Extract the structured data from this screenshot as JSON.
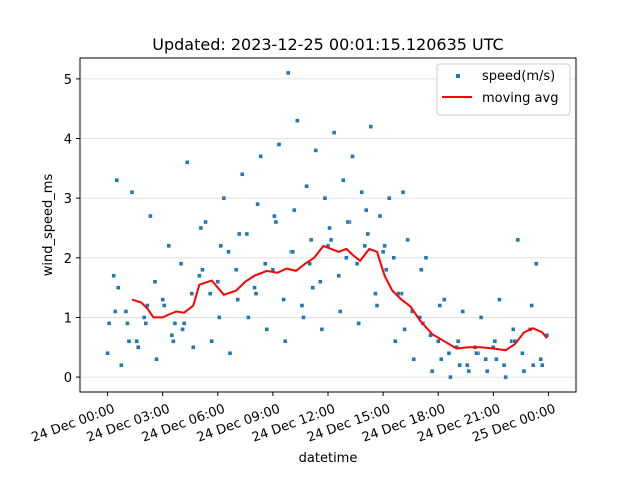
{
  "chart_data": {
    "type": "scatter",
    "title": "Updated: 2023-12-25 00:01:15.120635 UTC",
    "xlabel": "datetime",
    "ylabel": "wind_speed_ms",
    "xlim": [
      "2023-12-23T22:30",
      "2023-12-25T01:30"
    ],
    "ylim": [
      -0.25,
      5.35
    ],
    "yticks": [
      0,
      1,
      2,
      3,
      4,
      5
    ],
    "xticks": [
      {
        "value": "2023-12-24T00:00",
        "label": "24 Dec 00:00"
      },
      {
        "value": "2023-12-24T03:00",
        "label": "24 Dec 03:00"
      },
      {
        "value": "2023-12-24T06:00",
        "label": "24 Dec 06:00"
      },
      {
        "value": "2023-12-24T09:00",
        "label": "24 Dec 09:00"
      },
      {
        "value": "2023-12-24T12:00",
        "label": "24 Dec 12:00"
      },
      {
        "value": "2023-12-24T15:00",
        "label": "24 Dec 15:00"
      },
      {
        "value": "2023-12-24T18:00",
        "label": "24 Dec 18:00"
      },
      {
        "value": "2023-12-24T21:00",
        "label": "24 Dec 21:00"
      },
      {
        "value": "2023-12-25T00:00",
        "label": "25 Dec 00:00"
      }
    ],
    "grid": "y",
    "legend_position": "top-right",
    "series": [
      {
        "name": "speed(m/s)",
        "kind": "scatter",
        "color": "#1f77b4",
        "x": [
          "2023-12-24T00:00",
          "2023-12-24T00:20",
          "2023-12-24T00:30",
          "2023-12-24T00:45",
          "2023-12-24T01:00",
          "2023-12-24T01:20",
          "2023-12-24T01:40",
          "2023-12-24T02:00",
          "2023-12-24T02:20",
          "2023-12-24T02:40",
          "2023-12-24T03:00",
          "2023-12-24T03:20",
          "2023-12-24T03:40",
          "2023-12-24T04:00",
          "2023-12-24T04:20",
          "2023-12-24T04:40",
          "2023-12-24T05:00",
          "2023-12-24T05:20",
          "2023-12-24T05:40",
          "2023-12-24T06:00",
          "2023-12-24T06:20",
          "2023-12-24T06:40",
          "2023-12-24T07:00",
          "2023-12-24T07:20",
          "2023-12-24T07:40",
          "2023-12-24T08:00",
          "2023-12-24T08:20",
          "2023-12-24T08:40",
          "2023-12-24T09:00",
          "2023-12-24T09:20",
          "2023-12-24T09:40",
          "2023-12-24T10:00",
          "2023-12-24T10:20",
          "2023-12-24T10:40",
          "2023-12-24T11:00",
          "2023-12-24T11:20",
          "2023-12-24T11:40",
          "2023-12-24T12:00",
          "2023-12-24T12:20",
          "2023-12-24T12:40",
          "2023-12-24T13:00",
          "2023-12-24T13:20",
          "2023-12-24T13:40",
          "2023-12-24T14:00",
          "2023-12-24T14:20",
          "2023-12-24T14:40",
          "2023-12-24T15:00",
          "2023-12-24T15:20",
          "2023-12-24T15:40",
          "2023-12-24T16:00",
          "2023-12-24T16:20",
          "2023-12-24T16:40",
          "2023-12-24T17:00",
          "2023-12-24T17:20",
          "2023-12-24T17:40",
          "2023-12-24T18:00",
          "2023-12-24T18:20",
          "2023-12-24T18:40",
          "2023-12-24T19:00",
          "2023-12-24T19:20",
          "2023-12-24T19:40",
          "2023-12-24T20:00",
          "2023-12-24T20:20",
          "2023-12-24T20:40",
          "2023-12-24T21:00",
          "2023-12-24T21:20",
          "2023-12-24T21:40",
          "2023-12-24T22:00",
          "2023-12-24T22:20",
          "2023-12-24T22:40",
          "2023-12-24T23:00",
          "2023-12-24T23:20",
          "2023-12-24T23:40",
          "2023-12-24T23:55",
          "2023-12-24T01:10",
          "2023-12-24T00:25",
          "2023-12-24T02:10",
          "2023-12-24T03:30",
          "2023-12-24T04:10",
          "2023-12-24T05:10",
          "2023-12-24T06:10",
          "2023-12-24T07:10",
          "2023-12-24T08:10",
          "2023-12-24T09:10",
          "2023-12-24T09:50",
          "2023-12-24T10:10",
          "2023-12-24T10:50",
          "2023-12-24T11:10",
          "2023-12-24T11:50",
          "2023-12-24T12:10",
          "2023-12-24T12:50",
          "2023-12-24T13:10",
          "2023-12-24T13:50",
          "2023-12-24T14:10",
          "2023-12-24T14:50",
          "2023-12-24T15:10",
          "2023-12-24T15:50",
          "2023-12-24T16:10",
          "2023-12-24T17:10",
          "2023-12-24T18:10",
          "2023-12-24T19:10",
          "2023-12-24T20:10",
          "2023-12-24T21:10",
          "2023-12-24T22:10",
          "2023-12-24T23:10",
          "2023-12-24T00:05",
          "2023-12-24T00:35",
          "2023-12-24T01:05",
          "2023-12-24T01:35",
          "2023-12-24T02:05",
          "2023-12-24T02:35",
          "2023-12-24T03:05",
          "2023-12-24T03:35",
          "2023-12-24T04:05",
          "2023-12-24T04:35",
          "2023-12-24T05:05",
          "2023-12-24T05:35",
          "2023-12-24T06:05",
          "2023-12-24T06:35",
          "2023-12-24T07:05",
          "2023-12-24T07:35",
          "2023-12-24T08:05",
          "2023-12-24T08:35",
          "2023-12-24T09:05",
          "2023-12-24T09:35",
          "2023-12-24T10:05",
          "2023-12-24T10:35",
          "2023-12-24T11:05",
          "2023-12-24T11:35",
          "2023-12-24T12:05",
          "2023-12-24T12:35",
          "2023-12-24T13:05",
          "2023-12-24T13:35",
          "2023-12-24T14:05",
          "2023-12-24T14:35",
          "2023-12-24T15:05",
          "2023-12-24T15:35",
          "2023-12-24T16:05",
          "2023-12-24T16:35",
          "2023-12-24T17:05",
          "2023-12-24T17:35",
          "2023-12-24T18:05",
          "2023-12-24T18:35",
          "2023-12-24T19:05",
          "2023-12-24T19:35",
          "2023-12-24T20:05",
          "2023-12-24T20:35",
          "2023-12-24T21:05",
          "2023-12-24T21:35",
          "2023-12-24T22:05",
          "2023-12-24T22:35",
          "2023-12-24T23:05",
          "2023-12-24T23:35"
        ],
        "y": [
          0.4,
          1.7,
          3.3,
          0.2,
          1.1,
          3.1,
          0.5,
          1.0,
          2.7,
          0.3,
          1.3,
          2.2,
          0.9,
          1.9,
          3.6,
          0.5,
          1.7,
          2.6,
          0.6,
          1.6,
          3.0,
          0.4,
          1.8,
          3.4,
          1.0,
          1.5,
          3.7,
          0.8,
          1.8,
          3.9,
          0.6,
          2.1,
          4.3,
          1.0,
          1.9,
          3.8,
          0.8,
          2.2,
          4.1,
          1.1,
          2.0,
          3.7,
          0.9,
          2.2,
          4.2,
          1.2,
          2.1,
          3.0,
          0.6,
          1.4,
          2.3,
          0.3,
          1.0,
          2.0,
          0.1,
          0.6,
          1.3,
          0.0,
          0.5,
          1.1,
          0.1,
          0.5,
          1.0,
          0.1,
          0.5,
          1.3,
          0.0,
          0.6,
          2.3,
          0.1,
          0.8,
          1.9,
          0.2,
          0.7,
          0.6,
          1.1,
          1.2,
          0.7,
          0.9,
          1.8,
          2.2,
          2.4,
          2.9,
          2.6,
          5.1,
          2.8,
          3.2,
          1.5,
          3.0,
          2.3,
          3.3,
          2.6,
          3.1,
          2.4,
          2.7,
          1.8,
          1.4,
          0.8,
          0.9,
          0.3,
          0.2,
          0.4,
          0.3,
          0.6,
          0.2,
          0.9,
          1.5,
          0.9,
          0.6,
          0.9,
          1.6,
          1.2,
          0.6,
          0.8,
          1.4,
          2.5,
          1.4,
          1.0,
          2.1,
          1.3,
          2.4,
          1.4,
          1.9,
          2.7,
          1.3,
          2.1,
          1.2,
          2.3,
          1.6,
          2.5,
          1.7,
          2.6,
          1.9,
          2.8,
          1.4,
          2.2,
          2.0,
          3.1,
          1.1,
          1.8,
          0.7,
          1.2,
          0.4,
          0.6,
          0.2,
          0.4,
          0.3,
          0.6,
          0.2,
          0.8,
          0.4,
          1.2,
          0.3
        ]
      },
      {
        "name": "moving avg",
        "kind": "line",
        "color": "#ff0000",
        "x": [
          "2023-12-24T01:20",
          "2023-12-24T01:50",
          "2023-12-24T02:10",
          "2023-12-24T02:30",
          "2023-12-24T03:00",
          "2023-12-24T03:20",
          "2023-12-24T03:45",
          "2023-12-24T04:10",
          "2023-12-24T04:40",
          "2023-12-24T05:00",
          "2023-12-24T05:40",
          "2023-12-24T06:20",
          "2023-12-24T07:00",
          "2023-12-24T07:30",
          "2023-12-24T08:00",
          "2023-12-24T08:40",
          "2023-12-24T09:15",
          "2023-12-24T09:45",
          "2023-12-24T10:15",
          "2023-12-24T10:45",
          "2023-12-24T11:15",
          "2023-12-24T11:45",
          "2023-12-24T12:10",
          "2023-12-24T12:35",
          "2023-12-24T13:00",
          "2023-12-24T13:20",
          "2023-12-24T13:45",
          "2023-12-24T14:15",
          "2023-12-24T14:40",
          "2023-12-24T15:05",
          "2023-12-24T15:30",
          "2023-12-24T16:00",
          "2023-12-24T16:30",
          "2023-12-24T17:00",
          "2023-12-24T17:40",
          "2023-12-24T18:20",
          "2023-12-24T19:00",
          "2023-12-24T19:40",
          "2023-12-24T20:20",
          "2023-12-24T21:00",
          "2023-12-24T21:40",
          "2023-12-24T22:10",
          "2023-12-24T22:40",
          "2023-12-24T23:10",
          "2023-12-24T23:40",
          "2023-12-24T23:55"
        ],
        "y": [
          1.3,
          1.25,
          1.15,
          1.0,
          1.0,
          1.05,
          1.1,
          1.08,
          1.2,
          1.55,
          1.62,
          1.38,
          1.45,
          1.6,
          1.7,
          1.78,
          1.75,
          1.82,
          1.78,
          1.9,
          2.0,
          2.2,
          2.15,
          2.1,
          2.15,
          2.05,
          1.95,
          2.15,
          2.1,
          1.7,
          1.45,
          1.3,
          1.18,
          0.95,
          0.72,
          0.6,
          0.48,
          0.5,
          0.5,
          0.48,
          0.45,
          0.55,
          0.75,
          0.82,
          0.75,
          0.65
        ]
      }
    ]
  }
}
